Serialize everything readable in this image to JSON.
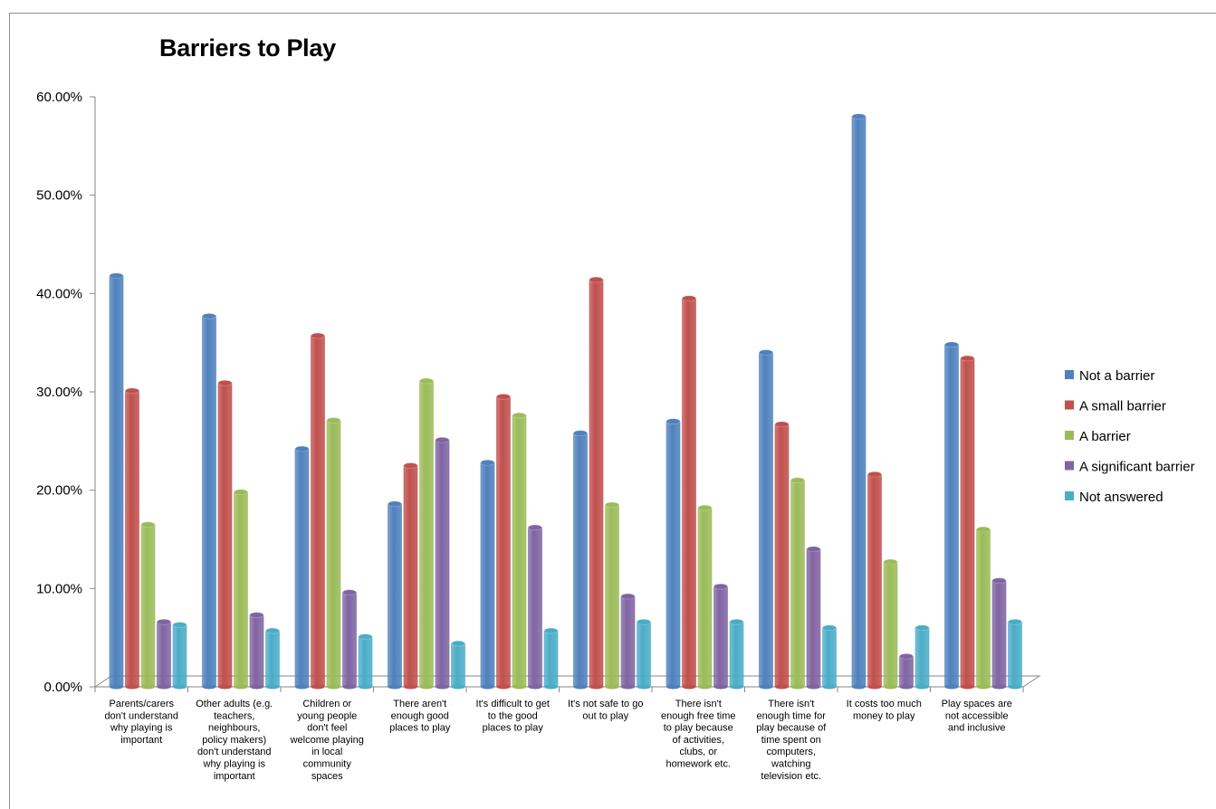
{
  "chart_data": {
    "type": "bar",
    "title": "Barriers to Play",
    "xlabel": "",
    "ylabel": "",
    "ylim": [
      0,
      0.6
    ],
    "yticks": [
      "0.00%",
      "10.00%",
      "20.00%",
      "30.00%",
      "40.00%",
      "50.00%",
      "60.00%"
    ],
    "grid": false,
    "legend_position": "right",
    "categories": [
      [
        "Parents/carers",
        "don't understand",
        "why playing is",
        "important"
      ],
      [
        "Other adults (e.g.",
        "teachers,",
        "neighbours,",
        "policy makers)",
        "don't understand",
        "why playing is",
        "important"
      ],
      [
        "Children or",
        "young people",
        "don't feel",
        "welcome playing",
        "in local",
        "community",
        "spaces"
      ],
      [
        "There aren't",
        "enough good",
        "places to play"
      ],
      [
        "It's difficult to get",
        "to the good",
        "places to play"
      ],
      [
        "It's not safe to go",
        "out to play"
      ],
      [
        "There isn't",
        "enough free time",
        "to play because",
        "of activities,",
        "clubs, or",
        "homework etc."
      ],
      [
        "There isn't",
        "enough time for",
        "play because of",
        "time spent on",
        "computers,",
        "watching",
        "television etc."
      ],
      [
        "It costs too much",
        "money to play"
      ],
      [
        "Play spaces are",
        "not accessible",
        "and inclusive"
      ]
    ],
    "series": [
      {
        "name": "Not a barrier",
        "color": "#4f81bd",
        "values": [
          0.418,
          0.377,
          0.242,
          0.186,
          0.228,
          0.258,
          0.27,
          0.34,
          0.58,
          0.348
        ]
      },
      {
        "name": "A small barrier",
        "color": "#c0504d",
        "values": [
          0.301,
          0.309,
          0.357,
          0.225,
          0.295,
          0.414,
          0.395,
          0.267,
          0.216,
          0.334
        ]
      },
      {
        "name": "A barrier",
        "color": "#9bbb59",
        "values": [
          0.165,
          0.198,
          0.271,
          0.311,
          0.276,
          0.185,
          0.182,
          0.21,
          0.127,
          0.16
        ]
      },
      {
        "name": "A significant barrier",
        "color": "#8064a2",
        "values": [
          0.066,
          0.073,
          0.096,
          0.251,
          0.162,
          0.092,
          0.102,
          0.14,
          0.031,
          0.108
        ]
      },
      {
        "name": "Not answered",
        "color": "#4bacc6",
        "values": [
          0.063,
          0.057,
          0.051,
          0.044,
          0.057,
          0.066,
          0.066,
          0.06,
          0.06,
          0.066
        ]
      }
    ]
  }
}
